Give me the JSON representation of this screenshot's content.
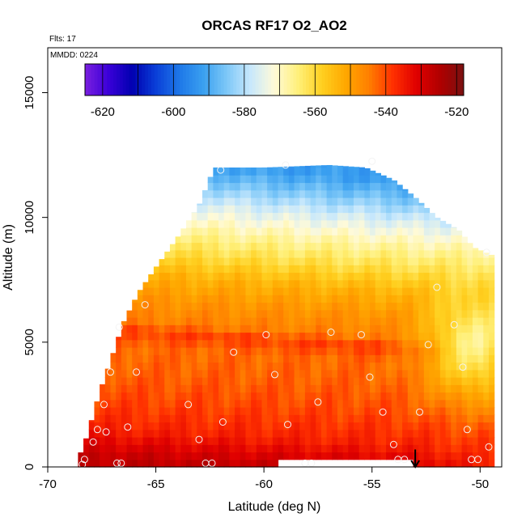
{
  "chart_data": {
    "type": "heatmap",
    "title": "ORCAS RF17 O2_AO2",
    "flights_label": "Flts: 17",
    "date_label": "MMDD: 0224",
    "xlabel": "Latitude (deg N)",
    "ylabel": "Altitude (m)",
    "xlim": [
      -70,
      -49
    ],
    "ylim": [
      0,
      16800
    ],
    "x_ticks": [
      -70,
      -65,
      -60,
      -55,
      -50
    ],
    "y_ticks": [
      0,
      5000,
      10000,
      15000
    ],
    "colorbar": {
      "range": [
        -625,
        -518
      ],
      "ticks": [
        -620,
        -600,
        -580,
        -560,
        -540,
        -520
      ],
      "colors": [
        "#7a1fe0",
        "#3a00d8",
        "#0000b0",
        "#0a3fd8",
        "#1e78e8",
        "#3aa0f0",
        "#7ec8f8",
        "#c8e8fc",
        "#fffad8",
        "#fff07a",
        "#ffd020",
        "#ffa800",
        "#ff7f00",
        "#ff3000",
        "#e00000",
        "#b00000",
        "#7a1010"
      ]
    },
    "cell_height_m": 300,
    "cell_width_deg": 0.25,
    "envelope": {
      "lat_edges": [
        -68.6,
        -68.2,
        -67.6,
        -67.0,
        -66.5,
        -65.8,
        -65.0,
        -64.0,
        -63.0,
        -62.3,
        -60.0,
        -57.0,
        -55.3,
        -54.0,
        -53.0,
        -52.0,
        -51.0,
        -50.3,
        -49.5
      ],
      "top_altitude": [
        300,
        1200,
        3000,
        4500,
        5800,
        7000,
        8000,
        9200,
        10500,
        12000,
        12000,
        12100,
        12000,
        11500,
        10800,
        10000,
        9500,
        8800,
        8500
      ]
    },
    "reference_profile": {
      "altitude": [
        0,
        400,
        800,
        1200,
        1800,
        2500,
        3500,
        4500,
        5200,
        5600,
        6500,
        7500,
        8500,
        9500,
        10500,
        11500,
        12200
      ],
      "value": [
        -527,
        -530,
        -533,
        -536,
        -538,
        -540,
        -542,
        -543,
        -539,
        -545,
        -548,
        -553,
        -561,
        -568,
        -576,
        -586,
        -592
      ]
    },
    "southward_lat_shift_deg": 3,
    "northern_upper_shift_deg": 5,
    "northern_upper_base_m": 3000,
    "northern_core": {
      "lat": -50.2,
      "altitude": 5000,
      "value": -566
    },
    "northern_lowlevel_value": -541,
    "missing_patch": {
      "lat_range": [
        -59.3,
        -53.0
      ],
      "alt_range": [
        0,
        250
      ]
    },
    "samples": [
      {
        "lat": -68.4,
        "alt": 100
      },
      {
        "lat": -68.3,
        "alt": 300
      },
      {
        "lat": -67.9,
        "alt": 1000
      },
      {
        "lat": -67.7,
        "alt": 1500
      },
      {
        "lat": -67.4,
        "alt": 2500
      },
      {
        "lat": -67.3,
        "alt": 1400
      },
      {
        "lat": -67.1,
        "alt": 3800
      },
      {
        "lat": -66.8,
        "alt": 150
      },
      {
        "lat": -66.6,
        "alt": 150
      },
      {
        "lat": -66.7,
        "alt": 5600
      },
      {
        "lat": -66.3,
        "alt": 1600
      },
      {
        "lat": -65.9,
        "alt": 3800
      },
      {
        "lat": -65.5,
        "alt": 6500
      },
      {
        "lat": -63.5,
        "alt": 2500
      },
      {
        "lat": -63.0,
        "alt": 1100
      },
      {
        "lat": -62.7,
        "alt": 150
      },
      {
        "lat": -62.4,
        "alt": 150
      },
      {
        "lat": -62.0,
        "alt": 11900
      },
      {
        "lat": -61.9,
        "alt": 1800
      },
      {
        "lat": -61.4,
        "alt": 4600
      },
      {
        "lat": -59.9,
        "alt": 5300
      },
      {
        "lat": -59.5,
        "alt": 3700
      },
      {
        "lat": -59.0,
        "alt": 12100
      },
      {
        "lat": -58.9,
        "alt": 1700
      },
      {
        "lat": -58.1,
        "alt": 150
      },
      {
        "lat": -57.8,
        "alt": 150
      },
      {
        "lat": -57.5,
        "alt": 2600
      },
      {
        "lat": -56.9,
        "alt": 5400
      },
      {
        "lat": -55.5,
        "alt": 5300
      },
      {
        "lat": -55.1,
        "alt": 3600
      },
      {
        "lat": -55.0,
        "alt": 12250
      },
      {
        "lat": -54.5,
        "alt": 2200
      },
      {
        "lat": -54.0,
        "alt": 900
      },
      {
        "lat": -53.8,
        "alt": 300
      },
      {
        "lat": -53.5,
        "alt": 300
      },
      {
        "lat": -52.8,
        "alt": 2200
      },
      {
        "lat": -52.4,
        "alt": 4900
      },
      {
        "lat": -52.0,
        "alt": 7200
      },
      {
        "lat": -51.2,
        "alt": 5700
      },
      {
        "lat": -50.8,
        "alt": 4000
      },
      {
        "lat": -50.6,
        "alt": 1500
      },
      {
        "lat": -50.4,
        "alt": 300
      },
      {
        "lat": -50.1,
        "alt": 300
      },
      {
        "lat": -49.7,
        "alt": 8600
      },
      {
        "lat": -49.6,
        "alt": 800
      }
    ],
    "arrow_marker": {
      "lat": -53.0,
      "alt_from": 700,
      "alt_to": 0
    }
  }
}
